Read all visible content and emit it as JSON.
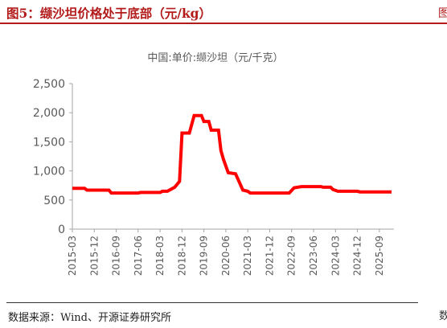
{
  "figure": {
    "title": "图5：缬沙坦价格处于底部（元/kg）",
    "source": "数据来源：Wind、开源证券研究所",
    "edge_top": "图",
    "edge_bottom": "数"
  },
  "colors": {
    "title": "#b31b1b",
    "series": "#ff0000",
    "axis": "#a6a6a6",
    "text": "#595959"
  },
  "chart_data": {
    "type": "line",
    "title": "中国:单价:缬沙坦（元/千克）",
    "xlabel": "",
    "ylabel": "",
    "ylim": [
      0,
      2500
    ],
    "yticks": [
      0,
      500,
      1000,
      1500,
      2000,
      2500
    ],
    "ytick_labels": [
      "0",
      "500",
      "1,000",
      "1,500",
      "2,000",
      "2,500"
    ],
    "xlim": [
      "2015-03",
      "2026-03"
    ],
    "xticks": [
      "2015-03",
      "2015-12",
      "2016-09",
      "2017-06",
      "2018-03",
      "2018-12",
      "2019-09",
      "2020-06",
      "2021-03",
      "2021-12",
      "2022-09",
      "2023-06",
      "2024-03",
      "2024-12",
      "2025-09"
    ],
    "grid": false,
    "legend": "none",
    "series": [
      {
        "name": "",
        "points": [
          [
            "2015-03",
            700
          ],
          [
            "2015-08",
            700
          ],
          [
            "2015-09",
            670
          ],
          [
            "2016-06",
            670
          ],
          [
            "2016-07",
            620
          ],
          [
            "2017-06",
            620
          ],
          [
            "2017-07",
            630
          ],
          [
            "2018-03",
            630
          ],
          [
            "2018-04",
            650
          ],
          [
            "2018-06",
            650
          ],
          [
            "2018-09",
            720
          ],
          [
            "2018-11",
            820
          ],
          [
            "2018-12",
            1650
          ],
          [
            "2019-03",
            1650
          ],
          [
            "2019-05",
            1950
          ],
          [
            "2019-08",
            1950
          ],
          [
            "2019-09",
            1850
          ],
          [
            "2019-11",
            1850
          ],
          [
            "2019-12",
            1700
          ],
          [
            "2020-03",
            1700
          ],
          [
            "2020-04",
            1350
          ],
          [
            "2020-05",
            1200
          ],
          [
            "2020-07",
            970
          ],
          [
            "2020-10",
            950
          ],
          [
            "2021-01",
            670
          ],
          [
            "2021-03",
            650
          ],
          [
            "2021-04",
            620
          ],
          [
            "2022-08",
            620
          ],
          [
            "2022-10",
            710
          ],
          [
            "2023-01",
            730
          ],
          [
            "2023-09",
            730
          ],
          [
            "2023-10",
            720
          ],
          [
            "2024-01",
            720
          ],
          [
            "2024-02",
            680
          ],
          [
            "2024-04",
            650
          ],
          [
            "2024-12",
            650
          ],
          [
            "2025-01",
            640
          ],
          [
            "2026-02",
            640
          ]
        ]
      }
    ]
  }
}
